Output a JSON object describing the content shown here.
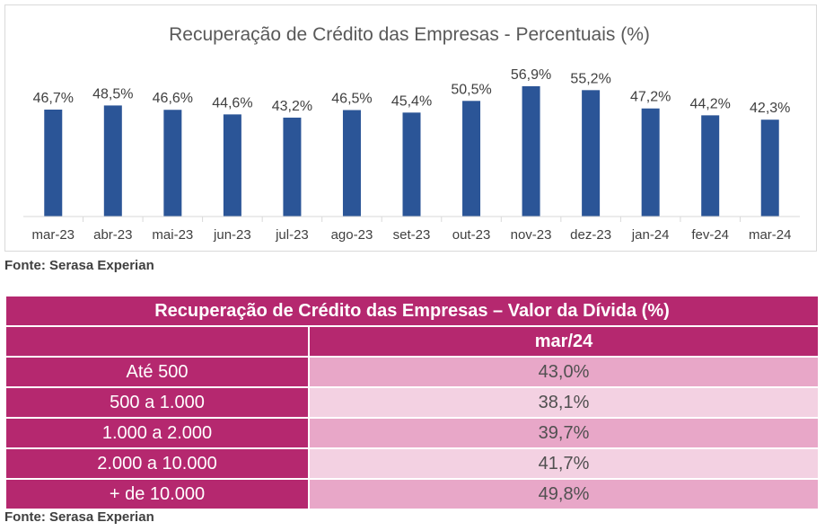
{
  "colors": {
    "bar": "#2b5597",
    "table_header": "#b5286f",
    "row_dark": "#e8a7c8",
    "row_light": "#f3d1e2"
  },
  "chart_data": {
    "type": "bar",
    "title": "Recuperação de Crédito das Empresas - Percentuais (%)",
    "xlabel": "",
    "ylabel": "",
    "ylim": [
      0,
      62
    ],
    "grid": false,
    "categories": [
      "mar-23",
      "abr-23",
      "mai-23",
      "jun-23",
      "jul-23",
      "ago-23",
      "set-23",
      "out-23",
      "nov-23",
      "dez-23",
      "jan-24",
      "fev-24",
      "mar-24"
    ],
    "values": [
      46.7,
      48.5,
      46.6,
      44.6,
      43.2,
      46.5,
      45.4,
      50.5,
      56.9,
      55.2,
      47.2,
      44.2,
      42.3
    ],
    "value_labels": [
      "46,7%",
      "48,5%",
      "46,6%",
      "44,6%",
      "43,2%",
      "46,5%",
      "45,4%",
      "50,5%",
      "56,9%",
      "55,2%",
      "47,2%",
      "44,2%",
      "42,3%"
    ]
  },
  "chart_source": "Fonte: Serasa Experian",
  "table": {
    "title": "Recuperação de Crédito das Empresas – Valor da Dívida (%)",
    "period": "mar/24",
    "rows": [
      {
        "label": "Até 500",
        "value": "43,0%"
      },
      {
        "label": "500 a 1.000",
        "value": "38,1%"
      },
      {
        "label": "1.000 a 2.000",
        "value": "39,7%"
      },
      {
        "label": "2.000 a 10.000",
        "value": "41,7%"
      },
      {
        "label": "+ de 10.000",
        "value": "49,8%"
      }
    ]
  },
  "table_source": "Fonte: Serasa Experian"
}
